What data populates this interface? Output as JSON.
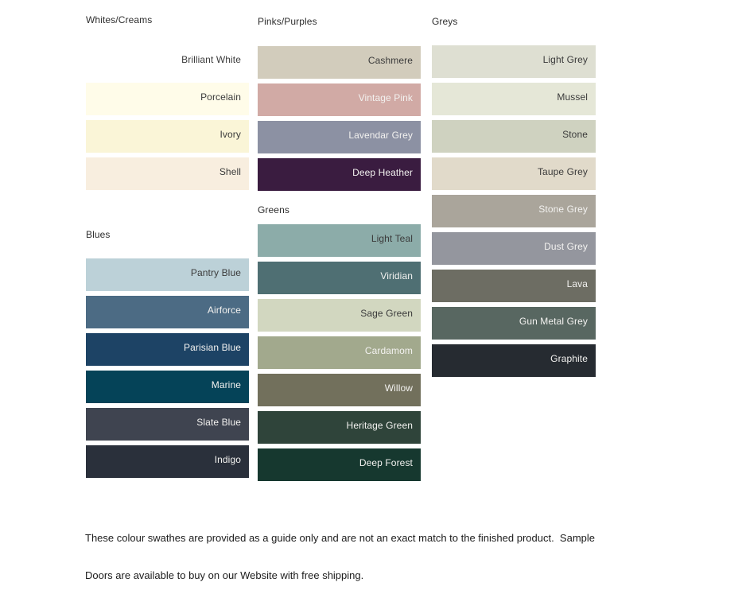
{
  "page": {
    "background": "#ffffff",
    "text_dark": "#3b3b3b",
    "text_light": "#f3f2f0"
  },
  "groups": [
    {
      "id": "whites-creams",
      "label": "Whites/Creams",
      "swatches": [
        {
          "name": "Brilliant White",
          "color": "#ffffff",
          "text": "dark"
        },
        {
          "name": "Porcelain",
          "color": "#fffce9",
          "text": "dark"
        },
        {
          "name": "Ivory",
          "color": "#faf5d7",
          "text": "dark"
        },
        {
          "name": "Shell",
          "color": "#f8eedf",
          "text": "dark"
        }
      ]
    },
    {
      "id": "blues",
      "label": "Blues",
      "swatches": [
        {
          "name": "Pantry Blue",
          "color": "#bcd1d8",
          "text": "dark"
        },
        {
          "name": "Airforce",
          "color": "#4c6b84",
          "text": "light"
        },
        {
          "name": "Parisian Blue",
          "color": "#1d4365",
          "text": "light"
        },
        {
          "name": "Marine",
          "color": "#054358",
          "text": "light"
        },
        {
          "name": "Slate Blue",
          "color": "#3f4450",
          "text": "light"
        },
        {
          "name": "Indigo",
          "color": "#2a303b",
          "text": "light"
        }
      ]
    },
    {
      "id": "pinks-purples",
      "label": "Pinks/Purples",
      "swatches": [
        {
          "name": "Cashmere",
          "color": "#d2ccbc",
          "text": "dark"
        },
        {
          "name": "Vintage Pink",
          "color": "#d1aaa5",
          "text": "light"
        },
        {
          "name": "Lavendar Grey",
          "color": "#8c91a3",
          "text": "light"
        },
        {
          "name": "Deep Heather",
          "color": "#3a1c40",
          "text": "light"
        }
      ]
    },
    {
      "id": "greens",
      "label": "Greens",
      "swatches": [
        {
          "name": "Light Teal",
          "color": "#8caca9",
          "text": "dark"
        },
        {
          "name": "Viridian",
          "color": "#4f6f73",
          "text": "light"
        },
        {
          "name": "Sage Green",
          "color": "#d2d7c0",
          "text": "dark"
        },
        {
          "name": "Cardamom",
          "color": "#a2a98d",
          "text": "light"
        },
        {
          "name": "Willow",
          "color": "#72705c",
          "text": "light"
        },
        {
          "name": "Heritage Green",
          "color": "#2f443a",
          "text": "light"
        },
        {
          "name": "Deep Forest",
          "color": "#16382f",
          "text": "light"
        }
      ]
    },
    {
      "id": "greys",
      "label": "Greys",
      "swatches": [
        {
          "name": "Light Grey",
          "color": "#dedfd2",
          "text": "dark"
        },
        {
          "name": "Mussel",
          "color": "#e5e7d7",
          "text": "dark"
        },
        {
          "name": "Stone",
          "color": "#cfd2c0",
          "text": "dark"
        },
        {
          "name": "Taupe Grey",
          "color": "#e1daca",
          "text": "dark"
        },
        {
          "name": "Stone Grey",
          "color": "#aaa59b",
          "text": "light"
        },
        {
          "name": "Dust Grey",
          "color": "#94969e",
          "text": "light"
        },
        {
          "name": "Lava",
          "color": "#6d6d63",
          "text": "light"
        },
        {
          "name": "Gun Metal Grey",
          "color": "#586761",
          "text": "light"
        },
        {
          "name": "Graphite",
          "color": "#262b31",
          "text": "light"
        }
      ]
    }
  ],
  "note": {
    "lines": [
      "These colour swathes are provided as a guide only and are not an exact match to the finished product.  Sample",
      "Doors are available to buy on our Website with free shipping."
    ]
  }
}
